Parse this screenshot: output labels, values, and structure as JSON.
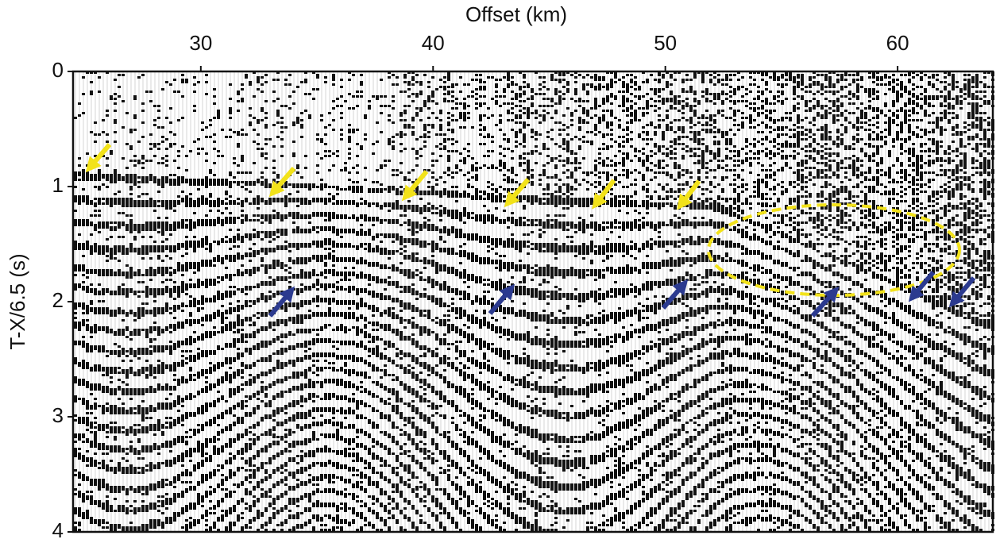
{
  "chart_data": {
    "type": "seismic-section",
    "x_label": "Offset (km)",
    "y_label": "T-X/6.5 (s)",
    "xlim": [
      24.5,
      64.1
    ],
    "xticks": [
      30,
      40,
      50,
      60
    ],
    "ylim": [
      0,
      4
    ],
    "yticks": [
      0,
      1,
      2,
      3,
      4
    ],
    "y_inverted": true,
    "x_axis_position": "top"
  }
}
